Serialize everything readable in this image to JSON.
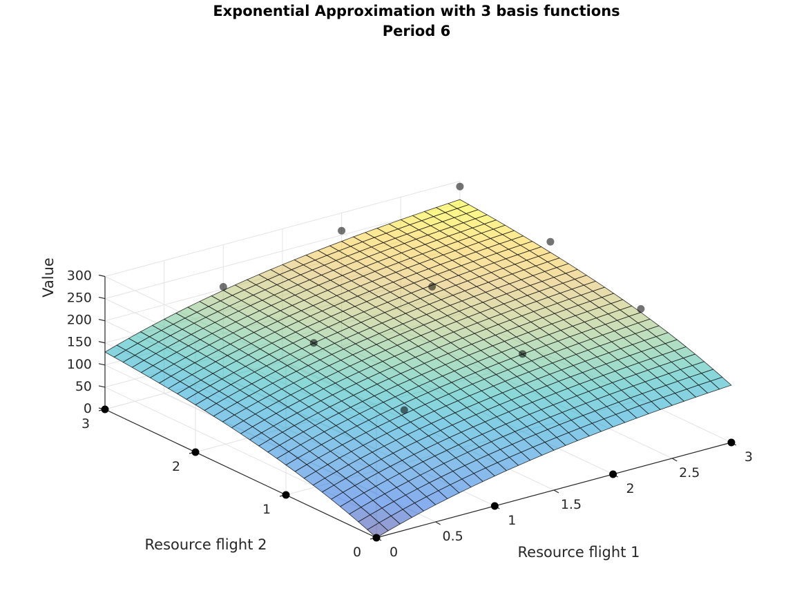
{
  "chart_data": {
    "type": "surface",
    "title": "Exponential Approximation with 3 basis functions",
    "subtitle": "Period 6",
    "xlabel": "Resource flight 1",
    "ylabel": "Resource flight 2",
    "zlabel": "Value",
    "xlim": [
      0,
      3
    ],
    "ylim": [
      0,
      3
    ],
    "zlim": [
      0,
      300
    ],
    "xticks": [
      "0",
      "0.5",
      "1",
      "1.5",
      "2",
      "2.5",
      "3"
    ],
    "yticks": [
      "0",
      "1",
      "2",
      "3"
    ],
    "zticks": [
      "0",
      "50",
      "100",
      "150",
      "200",
      "250",
      "300"
    ],
    "grid": true,
    "colormap": "parula",
    "surface": {
      "function": "a*(1-exp(-b*x1)) + a*(1-exp(-b*x2)) + c",
      "a": 160,
      "b": 0.55,
      "c": 0,
      "mesh_count": 30
    },
    "points": [
      {
        "x": 0,
        "y": 0,
        "z": 0
      },
      {
        "x": 1,
        "y": 0,
        "z": 0
      },
      {
        "x": 2,
        "y": 0,
        "z": 0
      },
      {
        "x": 3,
        "y": 0,
        "z": 0
      },
      {
        "x": 0,
        "y": 1,
        "z": 0
      },
      {
        "x": 0,
        "y": 2,
        "z": 0
      },
      {
        "x": 0,
        "y": 3,
        "z": 0
      },
      {
        "x": 1,
        "y": 1,
        "z": 120
      },
      {
        "x": 2,
        "y": 1,
        "z": 175
      },
      {
        "x": 3,
        "y": 1,
        "z": 205
      },
      {
        "x": 1,
        "y": 2,
        "z": 175
      },
      {
        "x": 2,
        "y": 2,
        "z": 230
      },
      {
        "x": 3,
        "y": 2,
        "z": 260
      },
      {
        "x": 1,
        "y": 3,
        "z": 205
      },
      {
        "x": 2,
        "y": 3,
        "z": 260
      },
      {
        "x": 3,
        "y": 3,
        "z": 288
      }
    ]
  }
}
